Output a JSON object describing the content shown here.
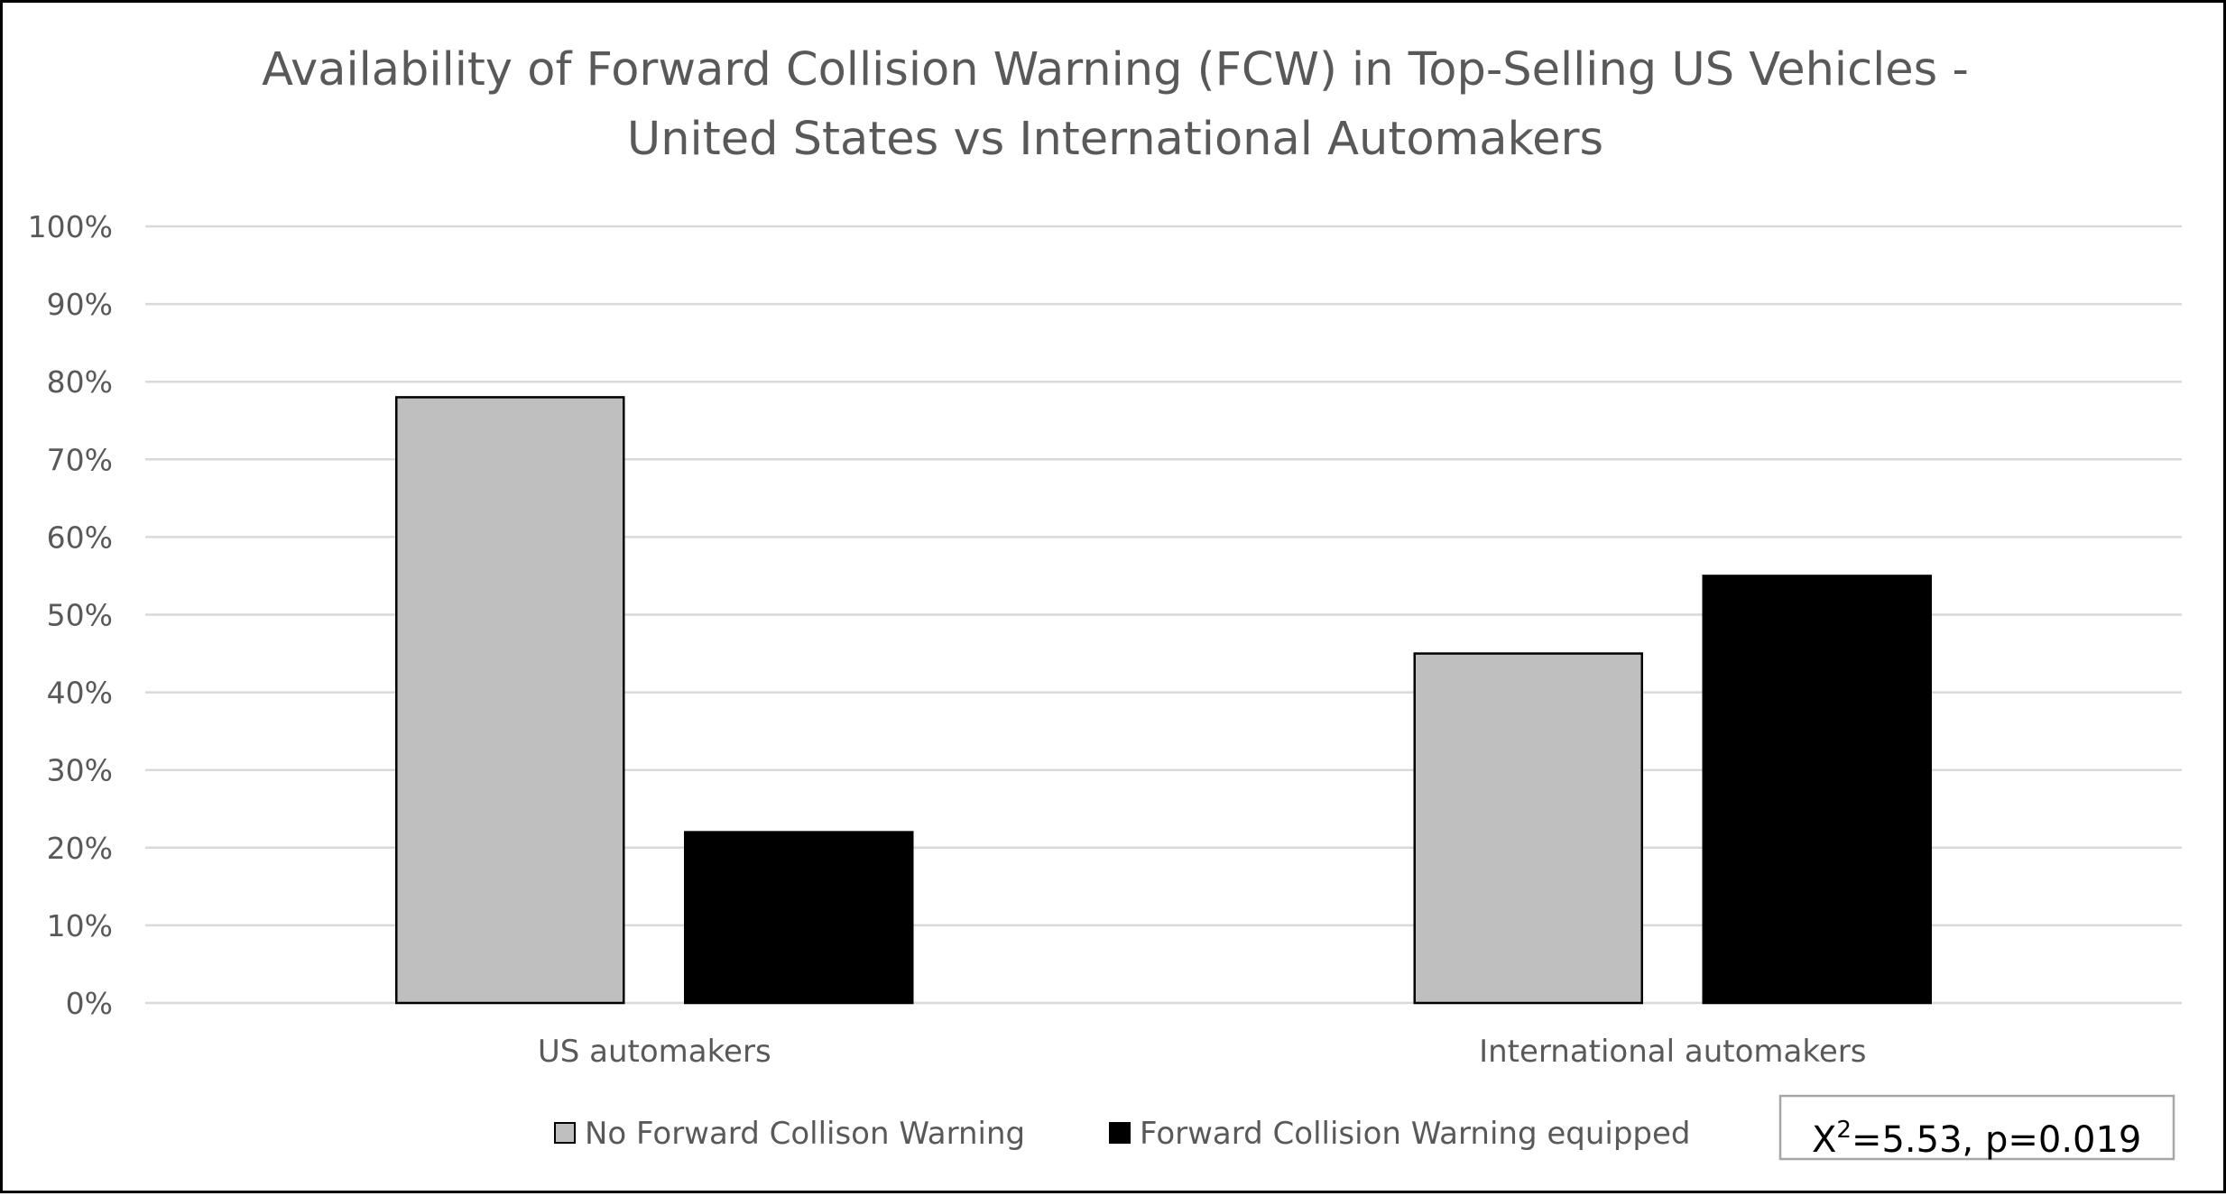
{
  "chart_data": {
    "type": "bar",
    "title_lines": [
      "Availability of Forward Collision Warning (FCW) in Top-Selling US Vehicles -",
      "United States vs International Automakers"
    ],
    "xlabel": "",
    "ylabel": "",
    "categories": [
      "US automakers",
      "International automakers"
    ],
    "series": [
      {
        "name": "No Forward Collison Warning",
        "values": [
          78,
          45
        ],
        "color": "#bfbfbf",
        "stroke": "#000000"
      },
      {
        "name": "Forward Collision Warning equipped",
        "values": [
          22,
          55
        ],
        "color": "#000000",
        "stroke": "#000000"
      }
    ],
    "ylim": [
      0,
      100
    ],
    "yticks": [
      "0%",
      "10%",
      "20%",
      "30%",
      "40%",
      "50%",
      "60%",
      "70%",
      "80%",
      "90%",
      "100%"
    ],
    "grid": true,
    "gridline_color": "#d9d9d9",
    "legend_position": "bottom",
    "annotation": {
      "base": "X",
      "superscript": "2",
      "rest": "=5.53, p=0.019"
    }
  }
}
